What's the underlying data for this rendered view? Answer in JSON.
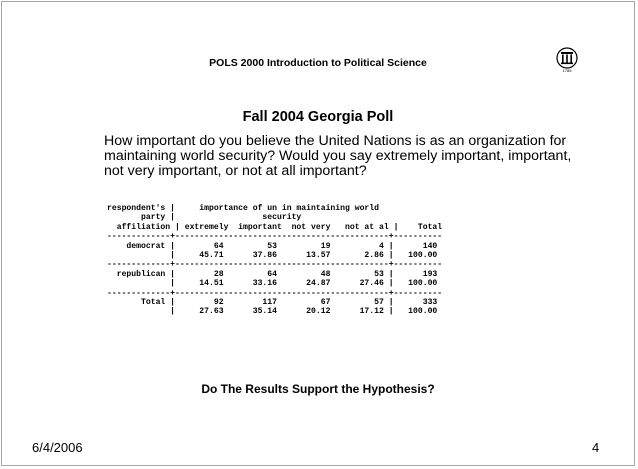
{
  "slide": {
    "course_title": "POLS 2000 Introduction to Political Science",
    "logo_year": "1785",
    "title": "Fall 2004 Georgia Poll",
    "question": "How important do you believe the United Nations is as an organization for maintaining world security? Would you say extremely important, important, not very important, or not at all important?",
    "table_lines": [
      "respondent's |     importance of un in maintaining world",
      "       party |                  security",
      "  affiliation | extremely  important  not very   not at al |    Total",
      "-------------+--------------------------------------------+----------",
      "    democrat |        64         53         19          4 |      140",
      "             |     45.71      37.86      13.57       2.86 |   100.00",
      "-------------+--------------------------------------------+----------",
      "  republican |        28         64         48         53 |      193",
      "             |     14.51      33.16      24.87      27.46 |   100.00",
      "-------------+--------------------------------------------+----------",
      "       Total |        92        117         67         57 |      333",
      "             |     27.63      35.14      20.12      17.12 |   100.00"
    ],
    "closing_question": "Do The Results Support the Hypothesis?",
    "date": "6/4/2006",
    "page_number": "4"
  }
}
